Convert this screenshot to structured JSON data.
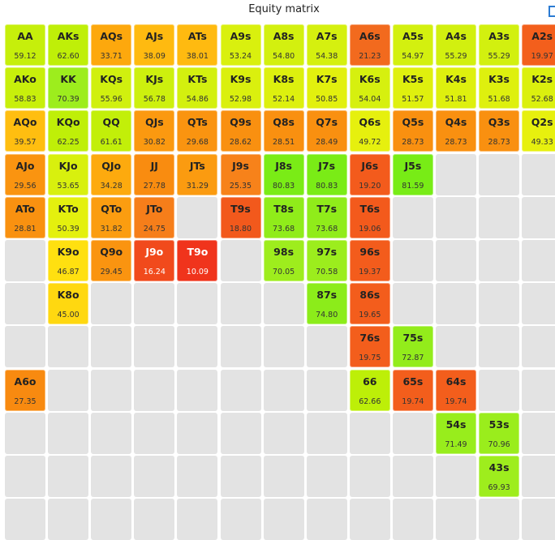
{
  "title": "Equity matrix",
  "icons": {
    "corner": "bracket-icon"
  },
  "cells": [
    {
      "r": 0,
      "c": 0,
      "hand": "AA",
      "equity": "59.12",
      "color": "#c6ef0b"
    },
    {
      "r": 0,
      "c": 1,
      "hand": "AKs",
      "equity": "62.60",
      "color": "#bfef08"
    },
    {
      "r": 0,
      "c": 2,
      "hand": "AQs",
      "equity": "33.71",
      "color": "#fda80d"
    },
    {
      "r": 0,
      "c": 3,
      "hand": "AJs",
      "equity": "38.09",
      "color": "#ffba10"
    },
    {
      "r": 0,
      "c": 4,
      "hand": "ATs",
      "equity": "38.01",
      "color": "#ffba10"
    },
    {
      "r": 0,
      "c": 5,
      "hand": "A9s",
      "equity": "53.24",
      "color": "#d9f00e"
    },
    {
      "r": 0,
      "c": 6,
      "hand": "A8s",
      "equity": "54.80",
      "color": "#d3f00f"
    },
    {
      "r": 0,
      "c": 7,
      "hand": "A7s",
      "equity": "54.38",
      "color": "#d5f00f"
    },
    {
      "r": 0,
      "c": 8,
      "hand": "A6s",
      "equity": "21.23",
      "color": "#f26a1e"
    },
    {
      "r": 0,
      "c": 9,
      "hand": "A5s",
      "equity": "54.97",
      "color": "#d3f00f"
    },
    {
      "r": 0,
      "c": 10,
      "hand": "A4s",
      "equity": "55.29",
      "color": "#d2f00f"
    },
    {
      "r": 0,
      "c": 11,
      "hand": "A3s",
      "equity": "55.29",
      "color": "#d2f00f"
    },
    {
      "r": 0,
      "c": 12,
      "hand": "A2s",
      "equity": "19.97",
      "color": "#f35f1c"
    },
    {
      "r": 1,
      "c": 0,
      "hand": "AKo",
      "equity": "58.83",
      "color": "#c8ef0b"
    },
    {
      "r": 1,
      "c": 1,
      "hand": "KK",
      "equity": "70.39",
      "color": "#9ded1d"
    },
    {
      "r": 1,
      "c": 2,
      "hand": "KQs",
      "equity": "55.96",
      "color": "#d0f00f"
    },
    {
      "r": 1,
      "c": 3,
      "hand": "KJs",
      "equity": "56.78",
      "color": "#cdf00e"
    },
    {
      "r": 1,
      "c": 4,
      "hand": "KTs",
      "equity": "54.86",
      "color": "#d3f00f"
    },
    {
      "r": 1,
      "c": 5,
      "hand": "K9s",
      "equity": "52.98",
      "color": "#daf00e"
    },
    {
      "r": 1,
      "c": 6,
      "hand": "K8s",
      "equity": "52.14",
      "color": "#ddf00e"
    },
    {
      "r": 1,
      "c": 7,
      "hand": "K7s",
      "equity": "50.85",
      "color": "#e2f00e"
    },
    {
      "r": 1,
      "c": 8,
      "hand": "K6s",
      "equity": "54.04",
      "color": "#d6f00f"
    },
    {
      "r": 1,
      "c": 9,
      "hand": "K5s",
      "equity": "51.57",
      "color": "#dff00e"
    },
    {
      "r": 1,
      "c": 10,
      "hand": "K4s",
      "equity": "51.81",
      "color": "#def00e"
    },
    {
      "r": 1,
      "c": 11,
      "hand": "K3s",
      "equity": "51.68",
      "color": "#def00e"
    },
    {
      "r": 1,
      "c": 12,
      "hand": "K2s",
      "equity": "52.68",
      "color": "#dbf00e"
    },
    {
      "r": 2,
      "c": 0,
      "hand": "AQo",
      "equity": "39.57",
      "color": "#ffbe10"
    },
    {
      "r": 2,
      "c": 1,
      "hand": "KQo",
      "equity": "62.25",
      "color": "#bfef08"
    },
    {
      "r": 2,
      "c": 2,
      "hand": "QQ",
      "equity": "61.61",
      "color": "#c2ef09"
    },
    {
      "r": 2,
      "c": 3,
      "hand": "QJs",
      "equity": "30.82",
      "color": "#fb9910"
    },
    {
      "r": 2,
      "c": 4,
      "hand": "QTs",
      "equity": "29.68",
      "color": "#fa9410"
    },
    {
      "r": 2,
      "c": 5,
      "hand": "Q9s",
      "equity": "28.62",
      "color": "#f99010"
    },
    {
      "r": 2,
      "c": 6,
      "hand": "Q8s",
      "equity": "28.51",
      "color": "#f99010"
    },
    {
      "r": 2,
      "c": 7,
      "hand": "Q7s",
      "equity": "28.49",
      "color": "#f99010"
    },
    {
      "r": 2,
      "c": 8,
      "hand": "Q6s",
      "equity": "49.72",
      "color": "#e6f00e"
    },
    {
      "r": 2,
      "c": 9,
      "hand": "Q5s",
      "equity": "28.73",
      "color": "#f99010"
    },
    {
      "r": 2,
      "c": 10,
      "hand": "Q4s",
      "equity": "28.73",
      "color": "#f99010"
    },
    {
      "r": 2,
      "c": 11,
      "hand": "Q3s",
      "equity": "28.73",
      "color": "#f99010"
    },
    {
      "r": 2,
      "c": 12,
      "hand": "Q2s",
      "equity": "49.33",
      "color": "#e7f00e"
    },
    {
      "r": 3,
      "c": 0,
      "hand": "AJo",
      "equity": "29.56",
      "color": "#fa9410"
    },
    {
      "r": 3,
      "c": 1,
      "hand": "KJo",
      "equity": "53.65",
      "color": "#d8f00e"
    },
    {
      "r": 3,
      "c": 2,
      "hand": "QJo",
      "equity": "34.28",
      "color": "#fdaa0e"
    },
    {
      "r": 3,
      "c": 3,
      "hand": "JJ",
      "equity": "27.78",
      "color": "#f98c10"
    },
    {
      "r": 3,
      "c": 4,
      "hand": "JTs",
      "equity": "31.29",
      "color": "#fb9b10"
    },
    {
      "r": 3,
      "c": 5,
      "hand": "J9s",
      "equity": "25.35",
      "color": "#f7821a"
    },
    {
      "r": 3,
      "c": 6,
      "hand": "J8s",
      "equity": "80.83",
      "color": "#7aec16"
    },
    {
      "r": 3,
      "c": 7,
      "hand": "J7s",
      "equity": "80.83",
      "color": "#7aec16"
    },
    {
      "r": 3,
      "c": 8,
      "hand": "J6s",
      "equity": "19.20",
      "color": "#f35b1c"
    },
    {
      "r": 3,
      "c": 9,
      "hand": "J5s",
      "equity": "81.59",
      "color": "#78ec16"
    },
    {
      "r": 4,
      "c": 0,
      "hand": "ATo",
      "equity": "28.81",
      "color": "#f99110"
    },
    {
      "r": 4,
      "c": 1,
      "hand": "KTo",
      "equity": "50.39",
      "color": "#e4f00e"
    },
    {
      "r": 4,
      "c": 2,
      "hand": "QTo",
      "equity": "31.82",
      "color": "#fb9d10"
    },
    {
      "r": 4,
      "c": 3,
      "hand": "JTo",
      "equity": "24.75",
      "color": "#f67e1a"
    },
    {
      "r": 4,
      "c": 5,
      "hand": "T9s",
      "equity": "18.80",
      "color": "#f2591c"
    },
    {
      "r": 4,
      "c": 6,
      "hand": "T8s",
      "equity": "73.68",
      "color": "#90ec1a"
    },
    {
      "r": 4,
      "c": 7,
      "hand": "T7s",
      "equity": "73.68",
      "color": "#90ec1a"
    },
    {
      "r": 4,
      "c": 8,
      "hand": "T6s",
      "equity": "19.06",
      "color": "#f35a1c"
    },
    {
      "r": 5,
      "c": 1,
      "hand": "K9o",
      "equity": "46.87",
      "color": "#ffe010"
    },
    {
      "r": 5,
      "c": 2,
      "hand": "Q9o",
      "equity": "29.45",
      "color": "#fa9410"
    },
    {
      "r": 5,
      "c": 3,
      "hand": "J9o",
      "equity": "16.24",
      "color": "#f14a1c",
      "light": true
    },
    {
      "r": 5,
      "c": 4,
      "hand": "T9o",
      "equity": "10.09",
      "color": "#f0341c",
      "light": true
    },
    {
      "r": 5,
      "c": 6,
      "hand": "98s",
      "equity": "70.05",
      "color": "#9eed1d"
    },
    {
      "r": 5,
      "c": 7,
      "hand": "97s",
      "equity": "70.58",
      "color": "#9ced1d"
    },
    {
      "r": 5,
      "c": 8,
      "hand": "96s",
      "equity": "19.37",
      "color": "#f35c1c"
    },
    {
      "r": 6,
      "c": 1,
      "hand": "K8o",
      "equity": "45.00",
      "color": "#ffd810"
    },
    {
      "r": 6,
      "c": 7,
      "hand": "87s",
      "equity": "74.80",
      "color": "#8cec1a"
    },
    {
      "r": 6,
      "c": 8,
      "hand": "86s",
      "equity": "19.65",
      "color": "#f35d1c"
    },
    {
      "r": 7,
      "c": 8,
      "hand": "76s",
      "equity": "19.75",
      "color": "#f35e1c"
    },
    {
      "r": 7,
      "c": 9,
      "hand": "75s",
      "equity": "72.87",
      "color": "#93ec1b"
    },
    {
      "r": 8,
      "c": 0,
      "hand": "A6o",
      "equity": "27.35",
      "color": "#f88a10"
    },
    {
      "r": 8,
      "c": 8,
      "hand": "66",
      "equity": "62.66",
      "color": "#bdef08"
    },
    {
      "r": 8,
      "c": 9,
      "hand": "65s",
      "equity": "19.74",
      "color": "#f35e1c"
    },
    {
      "r": 8,
      "c": 10,
      "hand": "64s",
      "equity": "19.74",
      "color": "#f35e1c"
    },
    {
      "r": 9,
      "c": 10,
      "hand": "54s",
      "equity": "71.49",
      "color": "#98ed1c"
    },
    {
      "r": 9,
      "c": 11,
      "hand": "53s",
      "equity": "70.96",
      "color": "#9aed1c"
    },
    {
      "r": 10,
      "c": 11,
      "hand": "43s",
      "equity": "69.93",
      "color": "#9eed1d"
    }
  ]
}
